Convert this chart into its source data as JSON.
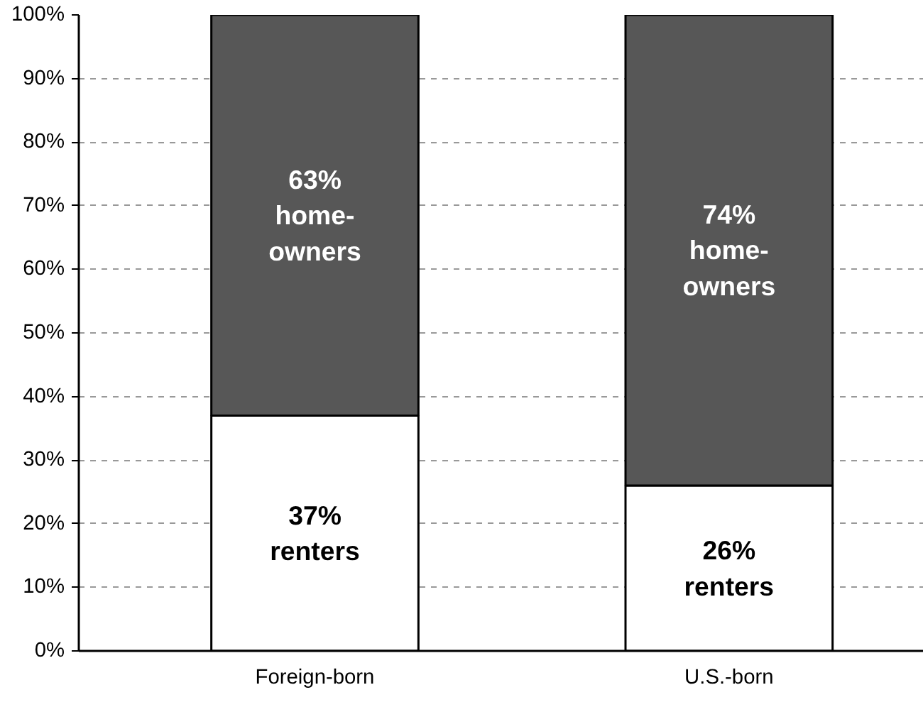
{
  "chart_data": {
    "type": "bar",
    "stacked": true,
    "categories": [
      "Foreign-born",
      "U.S.-born"
    ],
    "series": [
      {
        "color": "#ffffff",
        "values": [
          37,
          26
        ],
        "value_labels": [
          "37%\nrenters",
          "26%\nrenters"
        ]
      },
      {
        "color": "#575757",
        "values": [
          63,
          74
        ],
        "value_labels": [
          "63%\nhome-\nowners",
          "74%\nhome-\nowners"
        ]
      }
    ],
    "ylim": [
      0,
      100
    ],
    "yticks": [
      {
        "value": 0,
        "label": "0%"
      },
      {
        "value": 10,
        "label": "10%"
      },
      {
        "value": 20,
        "label": "20%"
      },
      {
        "value": 30,
        "label": "30%"
      },
      {
        "value": 40,
        "label": "40%"
      },
      {
        "value": 50,
        "label": "50%"
      },
      {
        "value": 60,
        "label": "60%"
      },
      {
        "value": 70,
        "label": "70%"
      },
      {
        "value": 80,
        "label": "80%"
      },
      {
        "value": 90,
        "label": "90%"
      },
      {
        "value": 100,
        "label": "100%"
      }
    ],
    "grid": "y"
  }
}
